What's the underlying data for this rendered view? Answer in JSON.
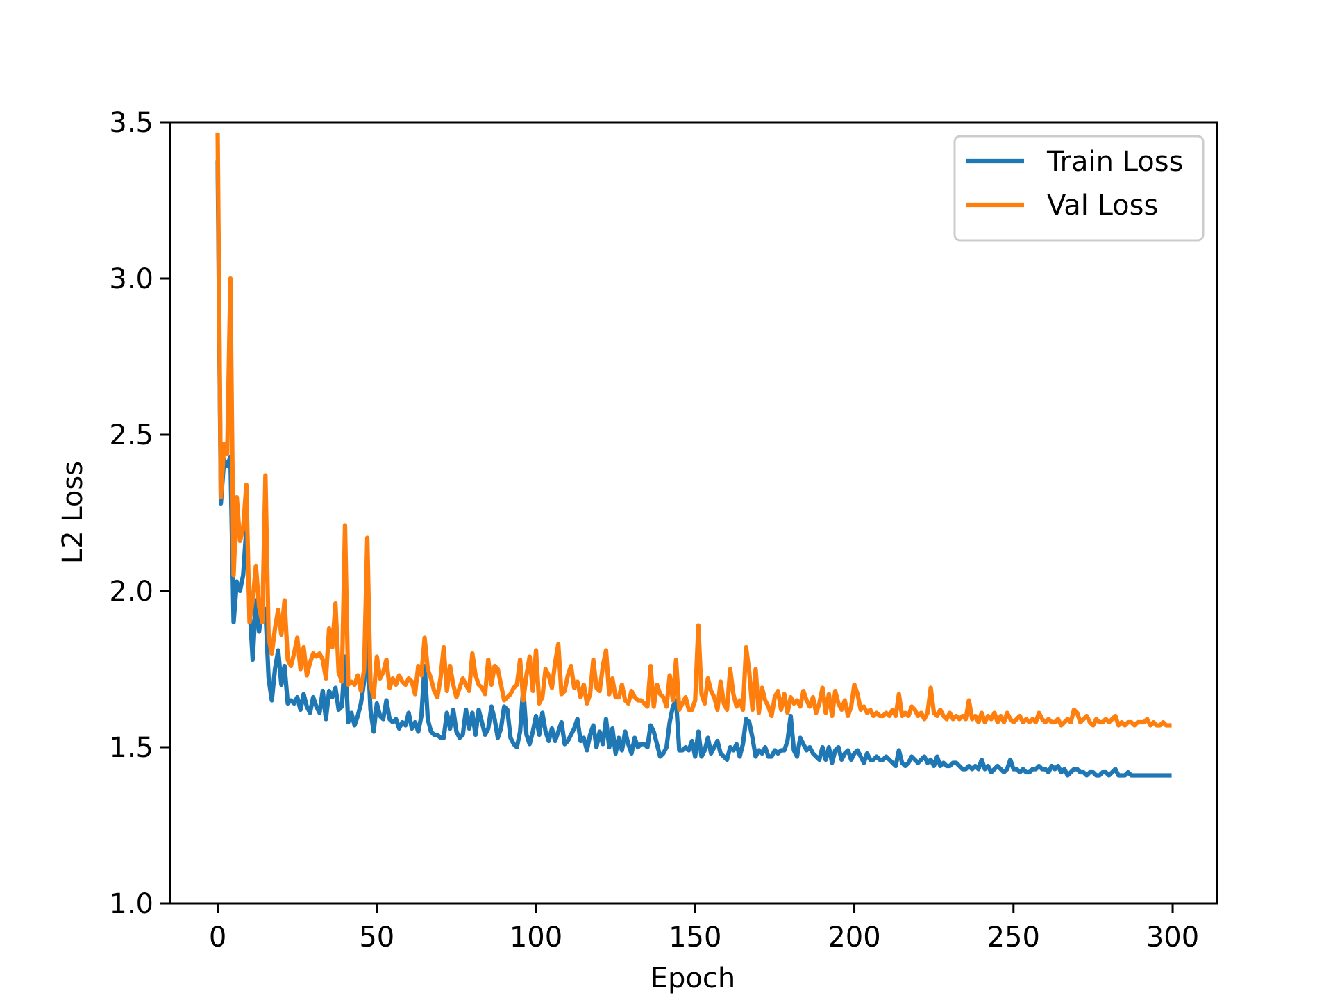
{
  "chart_data": {
    "type": "line",
    "x_label": "Epoch",
    "y_label": "L2 Loss",
    "x": [
      0,
      1,
      2,
      3,
      4,
      5,
      6,
      7,
      8,
      9,
      10,
      11,
      12,
      13,
      14,
      15,
      16,
      17,
      18,
      19,
      20,
      21,
      22,
      23,
      24,
      25,
      26,
      27,
      28,
      29,
      30,
      31,
      32,
      33,
      34,
      35,
      36,
      37,
      38,
      39,
      40,
      41,
      42,
      43,
      44,
      45,
      46,
      47,
      48,
      49,
      50,
      51,
      52,
      53,
      54,
      55,
      56,
      57,
      58,
      59,
      60,
      61,
      62,
      63,
      64,
      65,
      66,
      67,
      68,
      69,
      70,
      71,
      72,
      73,
      74,
      75,
      76,
      77,
      78,
      79,
      80,
      81,
      82,
      83,
      84,
      85,
      86,
      87,
      88,
      89,
      90,
      91,
      92,
      93,
      94,
      95,
      96,
      97,
      98,
      99,
      100,
      101,
      102,
      103,
      104,
      105,
      106,
      107,
      108,
      109,
      110,
      111,
      112,
      113,
      114,
      115,
      116,
      117,
      118,
      119,
      120,
      121,
      122,
      123,
      124,
      125,
      126,
      127,
      128,
      129,
      130,
      131,
      132,
      133,
      134,
      135,
      136,
      137,
      138,
      139,
      140,
      141,
      142,
      143,
      144,
      145,
      146,
      147,
      148,
      149,
      150,
      151,
      152,
      153,
      154,
      155,
      156,
      157,
      158,
      159,
      160,
      161,
      162,
      163,
      164,
      165,
      166,
      167,
      168,
      169,
      170,
      171,
      172,
      173,
      174,
      175,
      176,
      177,
      178,
      179,
      180,
      181,
      182,
      183,
      184,
      185,
      186,
      187,
      188,
      189,
      190,
      191,
      192,
      193,
      194,
      195,
      196,
      197,
      198,
      199,
      200,
      201,
      202,
      203,
      204,
      205,
      206,
      207,
      208,
      209,
      210,
      211,
      212,
      213,
      214,
      215,
      216,
      217,
      218,
      219,
      220,
      221,
      222,
      223,
      224,
      225,
      226,
      227,
      228,
      229,
      230,
      231,
      232,
      233,
      234,
      235,
      236,
      237,
      238,
      239,
      240,
      241,
      242,
      243,
      244,
      245,
      246,
      247,
      248,
      249,
      250,
      251,
      252,
      253,
      254,
      255,
      256,
      257,
      258,
      259,
      260,
      261,
      262,
      263,
      264,
      265,
      266,
      267,
      268,
      269,
      270,
      271,
      272,
      273,
      274,
      275,
      276,
      277,
      278,
      279,
      280,
      281,
      282,
      283,
      284,
      285,
      286,
      287,
      288,
      289,
      290,
      291,
      292,
      293,
      294,
      295,
      296,
      297,
      298,
      299
    ],
    "series": [
      {
        "name": "Train Loss",
        "color": "#1f77b4",
        "values": [
          3.37,
          2.28,
          2.42,
          2.4,
          2.43,
          1.9,
          2.03,
          2.0,
          2.05,
          2.2,
          1.95,
          1.78,
          1.97,
          1.87,
          1.95,
          1.94,
          1.72,
          1.65,
          1.75,
          1.81,
          1.7,
          1.76,
          1.64,
          1.65,
          1.64,
          1.66,
          1.62,
          1.67,
          1.63,
          1.61,
          1.66,
          1.63,
          1.61,
          1.68,
          1.59,
          1.68,
          1.66,
          1.69,
          1.62,
          1.63,
          1.79,
          1.58,
          1.61,
          1.57,
          1.6,
          1.64,
          1.71,
          1.84,
          1.62,
          1.55,
          1.64,
          1.6,
          1.59,
          1.65,
          1.59,
          1.58,
          1.59,
          1.56,
          1.58,
          1.57,
          1.61,
          1.56,
          1.58,
          1.55,
          1.6,
          1.76,
          1.59,
          1.55,
          1.54,
          1.54,
          1.53,
          1.53,
          1.61,
          1.56,
          1.62,
          1.55,
          1.53,
          1.54,
          1.62,
          1.56,
          1.61,
          1.54,
          1.62,
          1.58,
          1.54,
          1.56,
          1.63,
          1.59,
          1.53,
          1.56,
          1.63,
          1.62,
          1.53,
          1.51,
          1.5,
          1.55,
          1.69,
          1.54,
          1.51,
          1.55,
          1.6,
          1.54,
          1.61,
          1.55,
          1.52,
          1.56,
          1.52,
          1.55,
          1.58,
          1.51,
          1.52,
          1.54,
          1.56,
          1.59,
          1.52,
          1.53,
          1.49,
          1.54,
          1.57,
          1.5,
          1.55,
          1.51,
          1.59,
          1.5,
          1.56,
          1.48,
          1.53,
          1.49,
          1.55,
          1.51,
          1.48,
          1.53,
          1.5,
          1.51,
          1.51,
          1.5,
          1.57,
          1.55,
          1.51,
          1.47,
          1.48,
          1.5,
          1.58,
          1.63,
          1.65,
          1.49,
          1.49,
          1.5,
          1.49,
          1.52,
          1.47,
          1.55,
          1.47,
          1.49,
          1.53,
          1.48,
          1.5,
          1.52,
          1.48,
          1.47,
          1.46,
          1.5,
          1.49,
          1.51,
          1.47,
          1.51,
          1.59,
          1.58,
          1.53,
          1.47,
          1.49,
          1.48,
          1.5,
          1.47,
          1.47,
          1.49,
          1.48,
          1.49,
          1.49,
          1.52,
          1.6,
          1.49,
          1.47,
          1.53,
          1.51,
          1.49,
          1.5,
          1.48,
          1.47,
          1.46,
          1.5,
          1.46,
          1.5,
          1.45,
          1.49,
          1.5,
          1.46,
          1.48,
          1.49,
          1.46,
          1.48,
          1.49,
          1.47,
          1.45,
          1.48,
          1.46,
          1.46,
          1.47,
          1.46,
          1.46,
          1.47,
          1.46,
          1.45,
          1.44,
          1.49,
          1.45,
          1.44,
          1.45,
          1.47,
          1.46,
          1.45,
          1.46,
          1.47,
          1.45,
          1.46,
          1.44,
          1.47,
          1.44,
          1.45,
          1.44,
          1.44,
          1.45,
          1.45,
          1.44,
          1.43,
          1.43,
          1.44,
          1.43,
          1.44,
          1.43,
          1.46,
          1.43,
          1.44,
          1.42,
          1.43,
          1.44,
          1.43,
          1.42,
          1.43,
          1.46,
          1.43,
          1.43,
          1.42,
          1.43,
          1.42,
          1.42,
          1.43,
          1.43,
          1.44,
          1.43,
          1.43,
          1.42,
          1.44,
          1.43,
          1.44,
          1.42,
          1.43,
          1.41,
          1.42,
          1.43,
          1.43,
          1.42,
          1.42,
          1.41,
          1.42,
          1.42,
          1.41,
          1.41,
          1.42,
          1.42,
          1.41,
          1.42,
          1.43,
          1.41,
          1.41,
          1.41,
          1.42,
          1.41,
          1.41,
          1.41,
          1.41,
          1.41,
          1.41,
          1.41,
          1.41,
          1.41,
          1.41,
          1.41,
          1.41,
          1.41
        ]
      },
      {
        "name": "Val Loss",
        "color": "#ff7f0e",
        "values": [
          3.46,
          2.3,
          2.47,
          2.44,
          3.0,
          2.05,
          2.3,
          2.16,
          2.2,
          2.34,
          1.9,
          1.97,
          2.08,
          1.95,
          1.9,
          2.37,
          1.85,
          1.8,
          1.88,
          1.94,
          1.86,
          1.97,
          1.78,
          1.76,
          1.8,
          1.85,
          1.75,
          1.82,
          1.73,
          1.77,
          1.8,
          1.79,
          1.8,
          1.78,
          1.72,
          1.88,
          1.82,
          1.96,
          1.74,
          1.71,
          2.21,
          1.7,
          1.71,
          1.7,
          1.73,
          1.68,
          1.75,
          2.17,
          1.7,
          1.66,
          1.79,
          1.72,
          1.74,
          1.78,
          1.69,
          1.72,
          1.7,
          1.73,
          1.71,
          1.7,
          1.72,
          1.71,
          1.67,
          1.76,
          1.73,
          1.85,
          1.75,
          1.72,
          1.68,
          1.66,
          1.72,
          1.82,
          1.68,
          1.76,
          1.7,
          1.66,
          1.69,
          1.72,
          1.7,
          1.68,
          1.8,
          1.73,
          1.7,
          1.69,
          1.67,
          1.78,
          1.7,
          1.76,
          1.75,
          1.7,
          1.65,
          1.66,
          1.67,
          1.69,
          1.7,
          1.78,
          1.65,
          1.73,
          1.79,
          1.68,
          1.81,
          1.64,
          1.66,
          1.75,
          1.73,
          1.69,
          1.77,
          1.83,
          1.67,
          1.68,
          1.73,
          1.76,
          1.69,
          1.71,
          1.66,
          1.7,
          1.64,
          1.67,
          1.78,
          1.69,
          1.68,
          1.76,
          1.81,
          1.67,
          1.72,
          1.66,
          1.66,
          1.7,
          1.65,
          1.64,
          1.68,
          1.66,
          1.65,
          1.65,
          1.64,
          1.63,
          1.76,
          1.63,
          1.7,
          1.67,
          1.66,
          1.63,
          1.73,
          1.65,
          1.78,
          1.62,
          1.64,
          1.66,
          1.62,
          1.62,
          1.65,
          1.89,
          1.67,
          1.64,
          1.72,
          1.68,
          1.66,
          1.62,
          1.71,
          1.64,
          1.62,
          1.75,
          1.67,
          1.63,
          1.65,
          1.62,
          1.82,
          1.74,
          1.62,
          1.75,
          1.61,
          1.69,
          1.65,
          1.63,
          1.6,
          1.66,
          1.68,
          1.62,
          1.67,
          1.61,
          1.66,
          1.64,
          1.65,
          1.63,
          1.68,
          1.65,
          1.63,
          1.66,
          1.61,
          1.64,
          1.69,
          1.61,
          1.67,
          1.6,
          1.68,
          1.64,
          1.62,
          1.65,
          1.6,
          1.63,
          1.7,
          1.67,
          1.62,
          1.63,
          1.61,
          1.62,
          1.6,
          1.61,
          1.6,
          1.6,
          1.61,
          1.6,
          1.62,
          1.6,
          1.67,
          1.6,
          1.61,
          1.6,
          1.63,
          1.62,
          1.6,
          1.61,
          1.59,
          1.61,
          1.69,
          1.61,
          1.6,
          1.62,
          1.6,
          1.59,
          1.61,
          1.59,
          1.6,
          1.59,
          1.6,
          1.59,
          1.65,
          1.59,
          1.6,
          1.58,
          1.61,
          1.58,
          1.6,
          1.59,
          1.61,
          1.58,
          1.6,
          1.58,
          1.61,
          1.59,
          1.58,
          1.59,
          1.6,
          1.58,
          1.59,
          1.58,
          1.59,
          1.58,
          1.61,
          1.59,
          1.58,
          1.59,
          1.58,
          1.58,
          1.59,
          1.57,
          1.58,
          1.59,
          1.58,
          1.62,
          1.61,
          1.58,
          1.59,
          1.6,
          1.58,
          1.57,
          1.59,
          1.58,
          1.58,
          1.59,
          1.58,
          1.59,
          1.6,
          1.57,
          1.58,
          1.57,
          1.58,
          1.58,
          1.57,
          1.58,
          1.58,
          1.58,
          1.59,
          1.57,
          1.58,
          1.57,
          1.57,
          1.58,
          1.57,
          1.57
        ]
      }
    ],
    "xlim": [
      -14.95,
      313.95
    ],
    "xticks": [
      0,
      50,
      100,
      150,
      200,
      250,
      300
    ],
    "ylim": [
      1,
      3.5
    ],
    "yticks": [
      {
        "value": 1,
        "label": "1.0"
      },
      1.5,
      {
        "value": 2,
        "label": "2.0"
      },
      2.5,
      {
        "value": 3,
        "label": "3.0"
      },
      3.5
    ],
    "legend": "upper right",
    "grid": false
  }
}
